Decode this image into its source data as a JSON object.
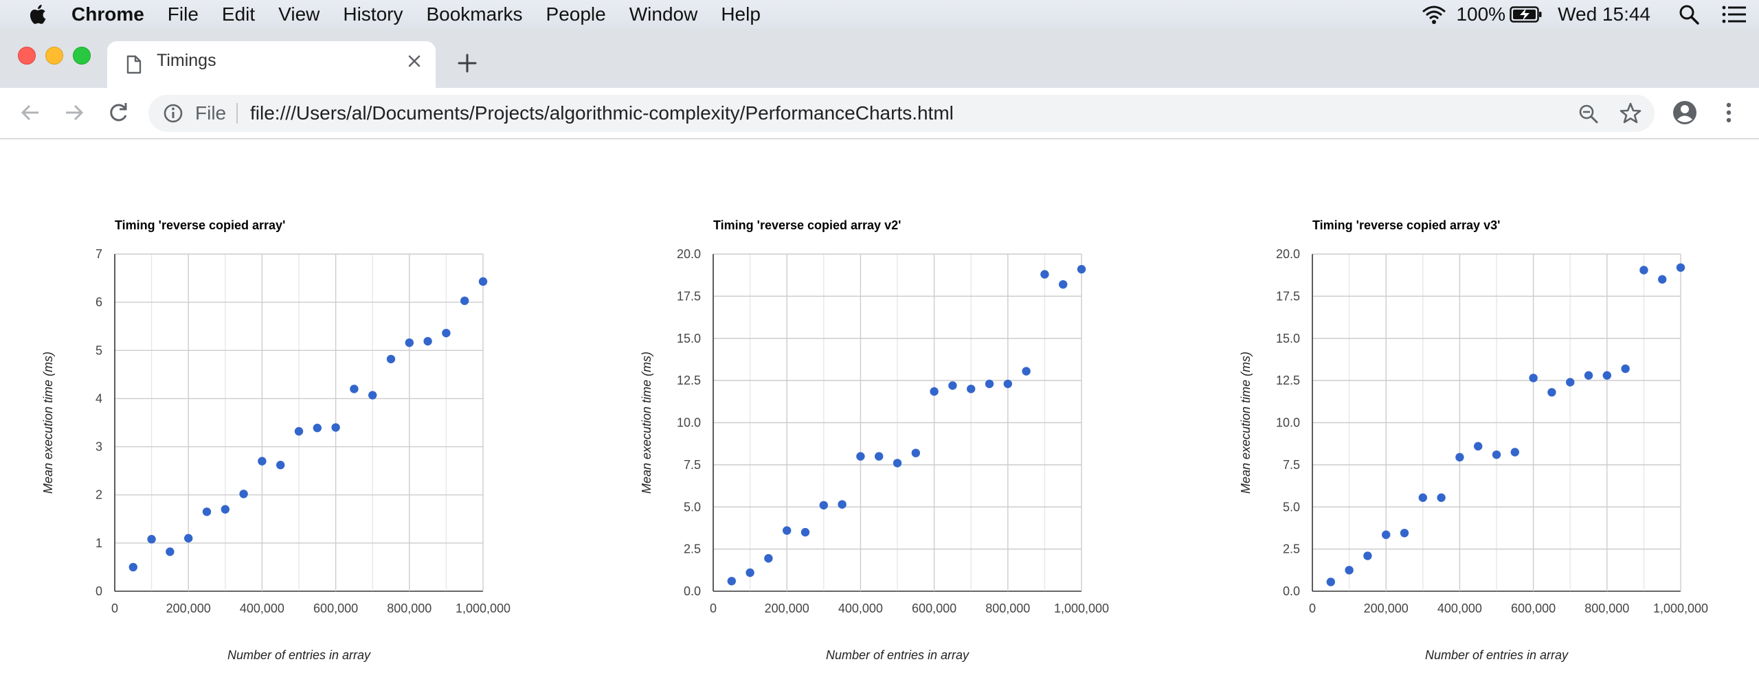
{
  "menubar": {
    "app_name": "Chrome",
    "items": [
      "File",
      "Edit",
      "View",
      "History",
      "Bookmarks",
      "People",
      "Window",
      "Help"
    ],
    "battery": "100%",
    "clock": "Wed 15:44"
  },
  "tab": {
    "title": "Timings"
  },
  "omnibox": {
    "scheme_label": "File",
    "url": "file:///Users/al/Documents/Projects/algorithmic-complexity/PerformanceCharts.html"
  },
  "colors": {
    "point": "#3366cc",
    "grid": "#cccccc"
  },
  "chart_data": [
    {
      "type": "scatter",
      "title": "Timing 'reverse copied array'",
      "xlabel": "Number of entries in array",
      "ylabel": "Mean execution time (ms)",
      "xlim": [
        0,
        1000000
      ],
      "ylim": [
        0,
        7
      ],
      "xticks": [
        0,
        200000,
        400000,
        600000,
        800000,
        1000000
      ],
      "xtick_labels": [
        "0",
        "200,000",
        "400,000",
        "600,000",
        "800,000",
        "1,000,000"
      ],
      "yticks": [
        0,
        1,
        2,
        3,
        4,
        5,
        6,
        7
      ],
      "ytick_labels": [
        "0",
        "1",
        "2",
        "3",
        "4",
        "5",
        "6",
        "7"
      ],
      "grid": true,
      "x": [
        50000,
        100000,
        150000,
        200000,
        250000,
        300000,
        350000,
        400000,
        450000,
        500000,
        550000,
        600000,
        650000,
        700000,
        750000,
        800000,
        850000,
        900000,
        950000,
        1000000
      ],
      "y": [
        0.5,
        1.08,
        0.82,
        1.1,
        1.65,
        1.7,
        2.02,
        2.7,
        2.62,
        3.32,
        3.39,
        3.4,
        4.2,
        4.07,
        4.82,
        5.16,
        5.19,
        5.36,
        6.03,
        6.43
      ]
    },
    {
      "type": "scatter",
      "title": "Timing 'reverse copied array v2'",
      "xlabel": "Number of entries in array",
      "ylabel": "Mean execution time (ms)",
      "xlim": [
        0,
        1000000
      ],
      "ylim": [
        0,
        20
      ],
      "xticks": [
        0,
        200000,
        400000,
        600000,
        800000,
        1000000
      ],
      "xtick_labels": [
        "0",
        "200,000",
        "400,000",
        "600,000",
        "800,000",
        "1,000,000"
      ],
      "yticks": [
        0,
        2.5,
        5,
        7.5,
        10,
        12.5,
        15,
        17.5,
        20
      ],
      "ytick_labels": [
        "0.0",
        "2.5",
        "5.0",
        "7.5",
        "10.0",
        "12.5",
        "15.0",
        "17.5",
        "20.0"
      ],
      "grid": true,
      "x": [
        50000,
        100000,
        150000,
        200000,
        250000,
        300000,
        350000,
        400000,
        450000,
        500000,
        550000,
        600000,
        650000,
        700000,
        750000,
        800000,
        850000,
        900000,
        950000,
        1000000
      ],
      "y": [
        0.6,
        1.1,
        1.95,
        3.6,
        3.5,
        5.1,
        5.15,
        8.0,
        8.0,
        7.6,
        8.2,
        11.85,
        12.2,
        12.0,
        12.3,
        12.3,
        13.05,
        18.8,
        18.2,
        19.1
      ]
    },
    {
      "type": "scatter",
      "title": "Timing 'reverse copied array v3'",
      "xlabel": "Number of entries in array",
      "ylabel": "Mean execution time (ms)",
      "xlim": [
        0,
        1000000
      ],
      "ylim": [
        0,
        20
      ],
      "xticks": [
        0,
        200000,
        400000,
        600000,
        800000,
        1000000
      ],
      "xtick_labels": [
        "0",
        "200,000",
        "400,000",
        "600,000",
        "800,000",
        "1,000,000"
      ],
      "yticks": [
        0,
        2.5,
        5,
        7.5,
        10,
        12.5,
        15,
        17.5,
        20
      ],
      "ytick_labels": [
        "0.0",
        "2.5",
        "5.0",
        "7.5",
        "10.0",
        "12.5",
        "15.0",
        "17.5",
        "20.0"
      ],
      "grid": true,
      "x": [
        50000,
        100000,
        150000,
        200000,
        250000,
        300000,
        350000,
        400000,
        450000,
        500000,
        550000,
        600000,
        650000,
        700000,
        750000,
        800000,
        850000,
        900000,
        950000,
        1000000
      ],
      "y": [
        0.55,
        1.25,
        2.1,
        3.35,
        3.45,
        5.55,
        5.55,
        7.95,
        8.6,
        8.1,
        8.25,
        12.65,
        11.8,
        12.4,
        12.8,
        12.8,
        13.2,
        19.05,
        18.5,
        19.2
      ]
    }
  ]
}
